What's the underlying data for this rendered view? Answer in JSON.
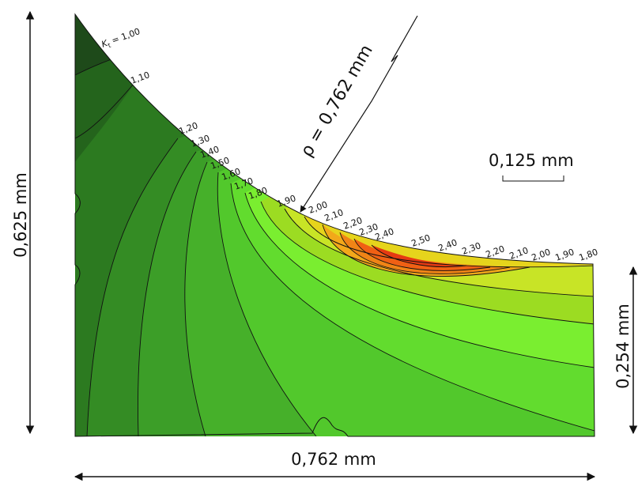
{
  "figure": {
    "radius_label": "ρ = 0,762 mm",
    "scale_bar_label": "0,125 mm",
    "dimensions": {
      "left_height": "0,625 mm",
      "right_height": "0,254 mm",
      "bottom_width": "0,762 mm"
    },
    "contour_labels": {
      "kt_symbol": "K",
      "kt_subscript": "t",
      "kt_value": " = 1,00",
      "notch_side": [
        "1,10",
        "1,20",
        "1,30",
        "1,40",
        "1,50",
        "1,60",
        "1,70",
        "1,80",
        "1,90",
        "2,00",
        "2,10",
        "2,20",
        "2,30",
        "2,40"
      ],
      "peak": "2,50",
      "right_side": [
        "2,40",
        "2,30",
        "2,20",
        "2,10",
        "2,00",
        "1,90",
        "1,80"
      ]
    },
    "colors": {
      "kt_1_00": "#1e4a1a",
      "kt_1_10": "#24641c",
      "kt_1_20": "#2c7a20",
      "kt_1_30": "#348c24",
      "kt_1_40": "#3c9e28",
      "kt_1_50": "#46b02a",
      "kt_1_60": "#52c82c",
      "kt_1_70": "#62dc2e",
      "kt_1_80": "#7aee30",
      "kt_1_90": "#9cdc22",
      "kt_2_00": "#c8e426",
      "kt_2_10": "#e6d41c",
      "kt_2_20": "#f2a81a",
      "kt_2_30": "#f08416",
      "kt_2_40": "#f06014",
      "kt_2_50": "#e63a12"
    }
  }
}
